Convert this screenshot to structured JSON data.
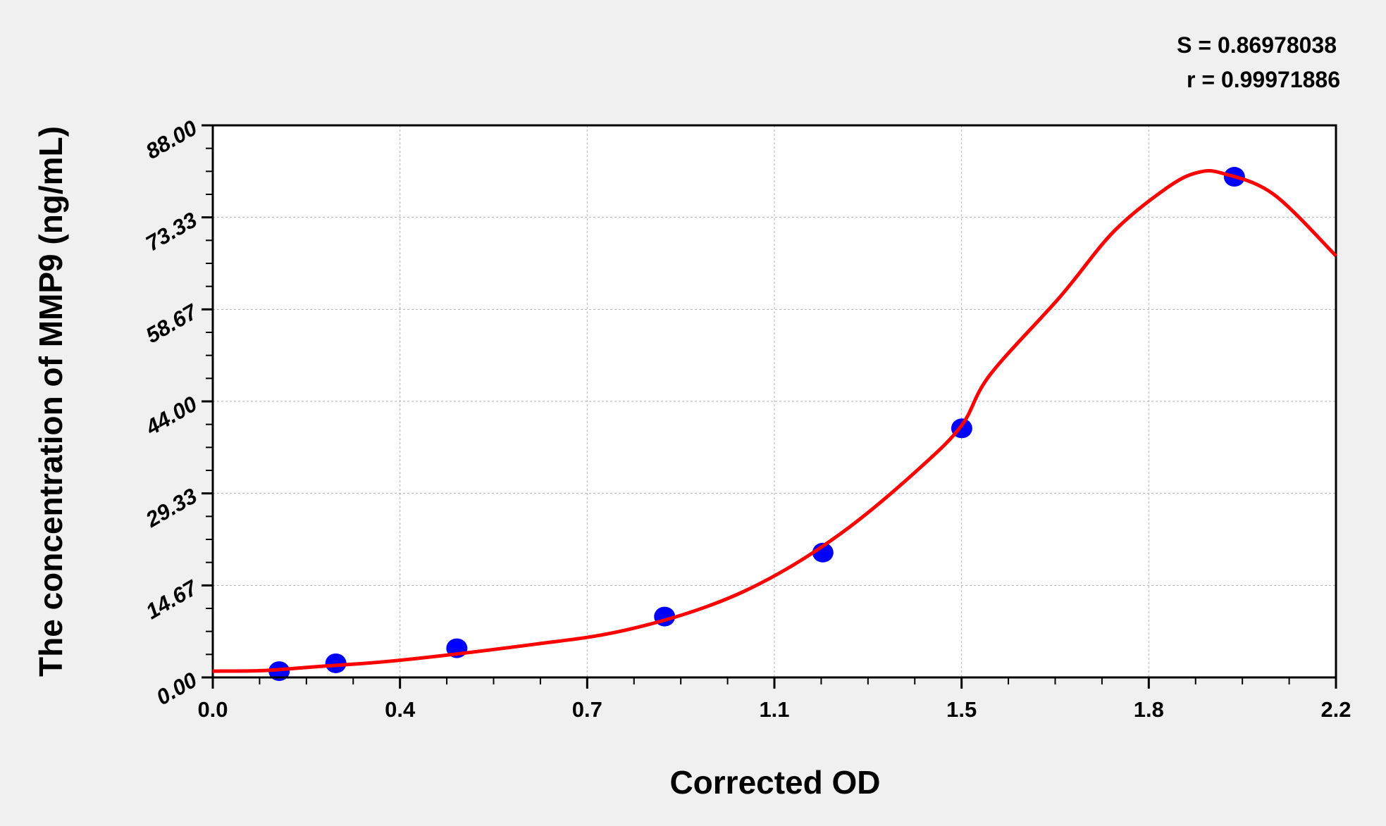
{
  "chart_data": {
    "type": "scatter",
    "xlabel": "Corrected OD",
    "ylabel": "The concentration of MMP9 (ng/mL)",
    "xlim": [
      0,
      2.2
    ],
    "ylim": [
      0,
      88
    ],
    "x_tick_labels": [
      "0.0",
      "0.4",
      "0.7",
      "1.1",
      "1.5",
      "1.8",
      "2.2"
    ],
    "y_tick_labels": [
      "0.00",
      "14.67",
      "29.33",
      "44.00",
      "58.67",
      "73.33",
      "88.00"
    ],
    "grid": true,
    "annotations": [
      "S = 0.86978038",
      "r = 0.99971886"
    ],
    "points": {
      "x": [
        0.13,
        0.241,
        0.478,
        0.885,
        1.195,
        1.467,
        2.001
      ],
      "y": [
        1.0,
        2.25,
        4.65,
        9.7,
        19.9,
        39.7,
        79.8
      ],
      "color": "#0000ff"
    },
    "fit_curve": {
      "x": [
        0.0,
        0.1,
        0.2,
        0.362,
        0.622,
        0.795,
        0.968,
        1.107,
        1.246,
        1.385,
        1.467,
        1.522,
        1.661,
        1.765,
        1.87,
        1.93,
        1.98,
        2.078,
        2.2
      ],
      "y": [
        1.0,
        1.1,
        1.7,
        2.7,
        5.2,
        7.3,
        11.3,
        16.5,
        23.9,
        33.4,
        40.2,
        48.2,
        60.8,
        71.1,
        78.1,
        80.5,
        80.3,
        77.0,
        67.2
      ],
      "color": "#ff0000"
    }
  }
}
